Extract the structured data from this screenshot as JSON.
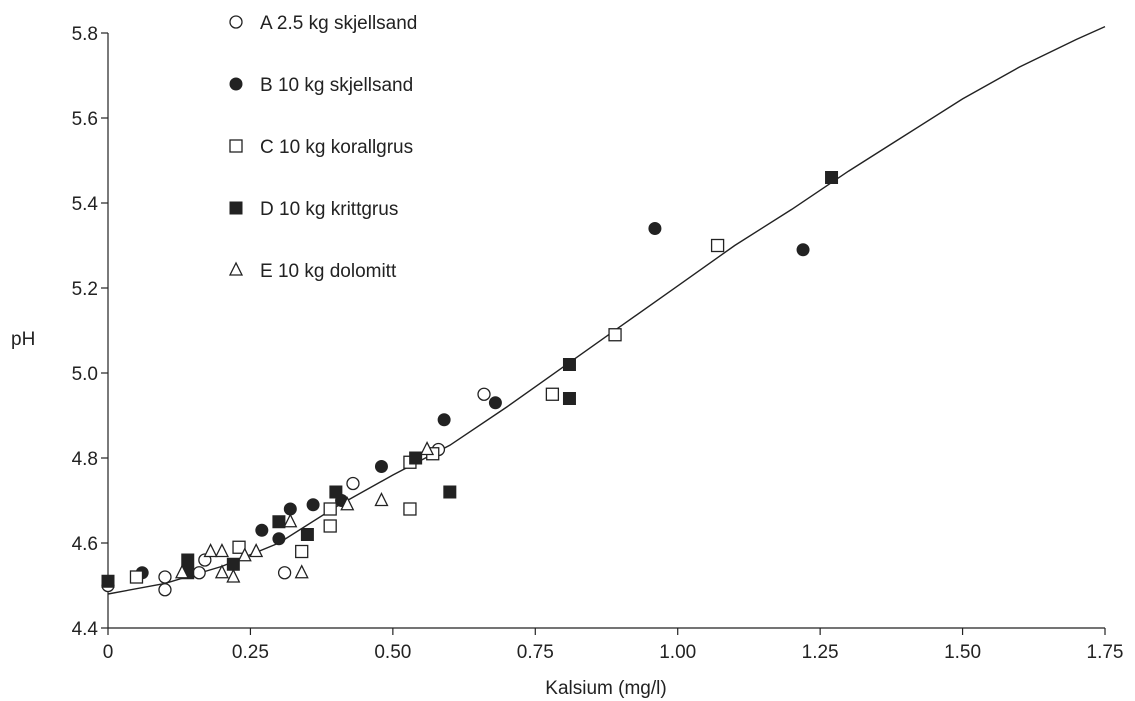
{
  "chart_data": {
    "type": "scatter",
    "xlabel": "Kalsium (mg/l)",
    "ylabel": "pH",
    "xlim": [
      0,
      1.75
    ],
    "ylim": [
      4.4,
      5.8
    ],
    "x_ticks": [
      "0",
      "0.25",
      "0.50",
      "0.75",
      "1.00",
      "1.25",
      "1.50",
      "1.75"
    ],
    "y_ticks": [
      "4.4",
      "4.6",
      "4.8",
      "5.0",
      "5.2",
      "5.4",
      "5.6",
      "5.8"
    ],
    "grid": false,
    "legend_position": "top-left",
    "series": [
      {
        "id": "A",
        "name": "A  2.5 kg skjellsand",
        "marker": "open-circle",
        "points": [
          [
            0.0,
            4.5
          ],
          [
            0.1,
            4.49
          ],
          [
            0.1,
            4.52
          ],
          [
            0.16,
            4.53
          ],
          [
            0.17,
            4.56
          ],
          [
            0.31,
            4.53
          ],
          [
            0.43,
            4.74
          ],
          [
            0.58,
            4.82
          ],
          [
            0.66,
            4.95
          ]
        ]
      },
      {
        "id": "B",
        "name": "B  10 kg skjellsand",
        "marker": "filled-circle",
        "points": [
          [
            0.06,
            4.53
          ],
          [
            0.27,
            4.63
          ],
          [
            0.3,
            4.61
          ],
          [
            0.32,
            4.68
          ],
          [
            0.36,
            4.69
          ],
          [
            0.41,
            4.7
          ],
          [
            0.48,
            4.78
          ],
          [
            0.59,
            4.89
          ],
          [
            0.68,
            4.93
          ],
          [
            0.96,
            5.34
          ],
          [
            1.22,
            5.29
          ]
        ]
      },
      {
        "id": "C",
        "name": "C  10 kg korallgrus",
        "marker": "open-square",
        "points": [
          [
            0.05,
            4.52
          ],
          [
            0.23,
            4.59
          ],
          [
            0.34,
            4.58
          ],
          [
            0.39,
            4.64
          ],
          [
            0.39,
            4.68
          ],
          [
            0.53,
            4.68
          ],
          [
            0.53,
            4.79
          ],
          [
            0.57,
            4.81
          ],
          [
            0.78,
            4.95
          ],
          [
            0.89,
            5.09
          ],
          [
            1.07,
            5.3
          ]
        ]
      },
      {
        "id": "D",
        "name": "D  10 kg krittgrus",
        "marker": "filled-square",
        "points": [
          [
            0.0,
            4.51
          ],
          [
            0.14,
            4.53
          ],
          [
            0.14,
            4.56
          ],
          [
            0.22,
            4.55
          ],
          [
            0.3,
            4.65
          ],
          [
            0.35,
            4.62
          ],
          [
            0.4,
            4.72
          ],
          [
            0.54,
            4.8
          ],
          [
            0.6,
            4.72
          ],
          [
            0.81,
            4.94
          ],
          [
            0.81,
            5.02
          ],
          [
            1.27,
            5.46
          ]
        ]
      },
      {
        "id": "E",
        "name": "E  10 kg dolomitt",
        "marker": "open-triangle",
        "points": [
          [
            0.13,
            4.53
          ],
          [
            0.18,
            4.58
          ],
          [
            0.2,
            4.58
          ],
          [
            0.2,
            4.53
          ],
          [
            0.22,
            4.52
          ],
          [
            0.24,
            4.57
          ],
          [
            0.26,
            4.58
          ],
          [
            0.32,
            4.65
          ],
          [
            0.34,
            4.53
          ],
          [
            0.42,
            4.69
          ],
          [
            0.48,
            4.7
          ],
          [
            0.56,
            4.82
          ]
        ]
      }
    ],
    "fit_line": {
      "x": [
        0.0,
        0.1,
        0.2,
        0.3,
        0.4,
        0.5,
        0.6,
        0.7,
        0.8,
        0.9,
        1.0,
        1.1,
        1.2,
        1.3,
        1.4,
        1.5,
        1.6,
        1.7,
        1.75
      ],
      "y": [
        4.48,
        4.505,
        4.545,
        4.6,
        4.685,
        4.76,
        4.83,
        4.92,
        5.015,
        5.11,
        5.205,
        5.3,
        5.385,
        5.475,
        5.56,
        5.645,
        5.72,
        5.785,
        5.815
      ]
    }
  }
}
